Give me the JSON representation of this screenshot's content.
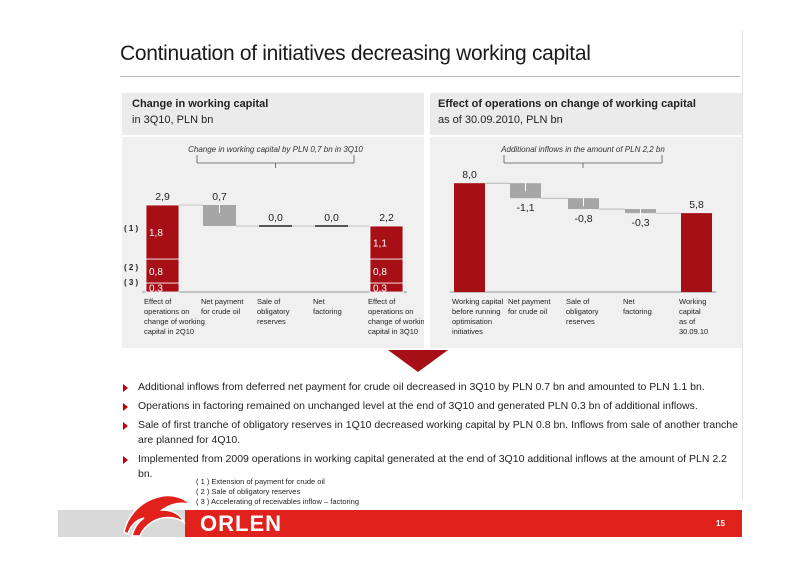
{
  "title": "Continuation of initiatives decreasing working capital",
  "left_panel": {
    "heading": "Change in working capital",
    "subheading": "in 3Q10, PLN bn",
    "brace_caption": "Change in working capital by PLN 0,7 bn in 3Q10"
  },
  "right_panel": {
    "heading": "Effect of operations on change of working capital",
    "subheading": "as of 30.09.2010, PLN bn",
    "brace_caption": "Additional inflows in the amount of PLN 2,2 bn"
  },
  "chart_data": [
    {
      "type": "bar",
      "subtype": "waterfall",
      "categories": [
        "Effect of operations on change of working capital in 2Q10",
        "Net payment for crude oil",
        "Sale of obligatory reserves",
        "Net factoring",
        "Effect of operations on change of working capital in 3Q10"
      ],
      "bars": [
        {
          "kind": "total",
          "value": 2.9,
          "label": "2,9",
          "segments": [
            {
              "tag": "(1)",
              "value": 1.8,
              "label": "1,8"
            },
            {
              "tag": "(2)",
              "value": 0.8,
              "label": "0,8"
            },
            {
              "tag": "(3)",
              "value": 0.3,
              "label": "0,3"
            }
          ]
        },
        {
          "kind": "delta",
          "value": -0.7,
          "label": "0,7"
        },
        {
          "kind": "delta",
          "value": 0.0,
          "label": "0,0"
        },
        {
          "kind": "delta",
          "value": 0.0,
          "label": "0,0"
        },
        {
          "kind": "total",
          "value": 2.2,
          "label": "2,2",
          "segments": [
            {
              "tag": "(1)",
              "value": 1.1,
              "label": "1,1"
            },
            {
              "tag": "(2)",
              "value": 0.8,
              "label": "0,8"
            },
            {
              "tag": "(3)",
              "value": 0.3,
              "label": "0,3"
            }
          ]
        }
      ],
      "segment_tags": [
        "( 1 )",
        "( 2 )",
        "( 3 )"
      ],
      "category_lines": [
        [
          "Effect of",
          "operations on",
          "change of working",
          "capital in 2Q10"
        ],
        [
          "Net payment",
          "for crude oil"
        ],
        [
          "Sale of",
          "obligatory",
          "reserves"
        ],
        [
          "Net",
          "factoring"
        ],
        [
          "Effect of",
          "operations on",
          "change of working",
          "capital in 3Q10"
        ]
      ],
      "colors": {
        "total": "#a50f15",
        "delta": "#a6a6a6"
      }
    },
    {
      "type": "bar",
      "subtype": "waterfall",
      "categories": [
        "Working capital before running optimisation initiatives",
        "Net payment for crude oil",
        "Sale of obligatory reserves",
        "Net factoring",
        "Working capital as of 30.09.10"
      ],
      "bars": [
        {
          "kind": "total",
          "value": 8.0,
          "label": "8,0"
        },
        {
          "kind": "delta",
          "value": -1.1,
          "label": "-1,1"
        },
        {
          "kind": "delta",
          "value": -0.8,
          "label": "-0,8"
        },
        {
          "kind": "delta",
          "value": -0.3,
          "label": "-0,3"
        },
        {
          "kind": "total",
          "value": 5.8,
          "label": "5,8"
        }
      ],
      "category_lines": [
        [
          "Working capital",
          "before running",
          "optimisation",
          "initiatives"
        ],
        [
          "Net payment",
          "for crude oil"
        ],
        [
          "Sale of",
          "obligatory",
          "reserves"
        ],
        [
          "Net",
          "factoring"
        ],
        [
          "Working",
          "capital",
          "as of",
          "30.09.10"
        ]
      ],
      "colors": {
        "total": "#a50f15",
        "delta": "#a6a6a6"
      }
    }
  ],
  "bullets": [
    "Additional inflows from deferred net payment for crude oil decreased in 3Q10 by PLN 0.7 bn and amounted to PLN 1.1 bn.",
    "Operations in factoring remained on unchanged level at the end of 3Q10 and generated PLN 0.3 bn of additional inflows.",
    "Sale of first tranche of obligatory reserves in 1Q10 decreased working capital by PLN 0.8 bn. Inflows from sale of another tranche are planned for 4Q10.",
    "Implemented from 2009 operations in working capital generated at the end of 3Q10 additional inflows at the amount of PLN 2.2 bn."
  ],
  "legend": [
    "( 1 ) Extension of payment for crude oil",
    "( 2 ) Sale of obligatory reserves",
    "( 3 ) Accelerating of  receivables inflow – factoring"
  ],
  "footer": {
    "logo_text": "ORLEN",
    "page_number": "15"
  },
  "colors": {
    "accent": "#e0211c",
    "dark_red": "#a50f15",
    "gray_bar": "#a6a6a6"
  }
}
